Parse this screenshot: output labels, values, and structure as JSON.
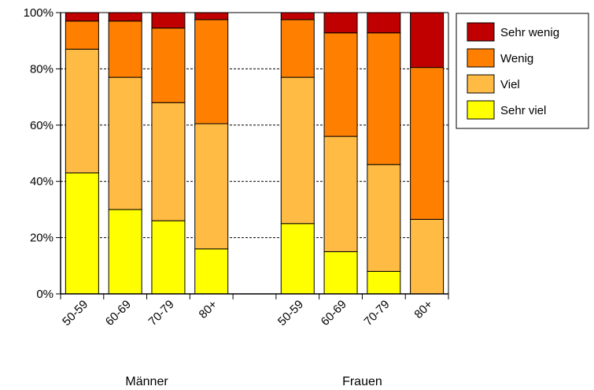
{
  "chart_data": {
    "type": "bar",
    "stacked": true,
    "normalized": true,
    "categories": [
      "50-59",
      "60-69",
      "70-79",
      "80+",
      "",
      "50-59",
      "60-69",
      "70-79",
      "80+"
    ],
    "groups": [
      {
        "label": "Männer",
        "categories": [
          "50-59",
          "60-69",
          "70-79",
          "80+"
        ]
      },
      {
        "label": "Frauen",
        "categories": [
          "50-59",
          "60-69",
          "70-79",
          "80+"
        ]
      }
    ],
    "series": [
      {
        "name": "Sehr viel",
        "color": "#ffff00",
        "values": [
          43,
          30,
          26,
          16,
          null,
          25,
          15,
          8,
          0
        ]
      },
      {
        "name": "Viel",
        "color": "#ffbb44",
        "values": [
          44,
          47,
          42,
          44.5,
          null,
          52,
          41,
          38,
          26.5
        ]
      },
      {
        "name": "Wenig",
        "color": "#ff8000",
        "values": [
          10,
          20,
          26.5,
          37,
          null,
          20.5,
          36.8,
          46.8,
          54
        ]
      },
      {
        "name": "Sehr wenig",
        "color": "#c00000",
        "values": [
          3,
          3,
          5.5,
          2.5,
          null,
          2.5,
          7.2,
          7.2,
          19.5
        ]
      }
    ],
    "ylim": [
      0,
      100
    ],
    "yticks": [
      "0%",
      "20%",
      "40%",
      "60%",
      "80%",
      "100%"
    ],
    "grid": true,
    "legend_position": "right",
    "xlabel": "",
    "ylabel": "",
    "title": ""
  }
}
